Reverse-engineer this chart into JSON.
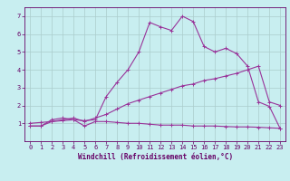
{
  "xlabel": "Windchill (Refroidissement éolien,°C)",
  "background_color": "#c8eef0",
  "line_color": "#993399",
  "grid_color": "#aacccc",
  "xlim": [
    -0.5,
    23.5
  ],
  "ylim": [
    0,
    7.5
  ],
  "xticks": [
    0,
    1,
    2,
    3,
    4,
    5,
    6,
    7,
    8,
    9,
    10,
    11,
    12,
    13,
    14,
    15,
    16,
    17,
    18,
    19,
    20,
    21,
    22,
    23
  ],
  "yticks": [
    1,
    2,
    3,
    4,
    5,
    6,
    7
  ],
  "line1_x": [
    0,
    1,
    2,
    3,
    4,
    5,
    6,
    7,
    8,
    9,
    10,
    11,
    12,
    13,
    14,
    15,
    16,
    17,
    18,
    19,
    20,
    21,
    22,
    23
  ],
  "line1_y": [
    0.85,
    0.85,
    1.1,
    1.15,
    1.2,
    0.85,
    1.1,
    1.1,
    1.05,
    1.0,
    1.0,
    0.95,
    0.9,
    0.9,
    0.9,
    0.85,
    0.85,
    0.85,
    0.82,
    0.8,
    0.8,
    0.78,
    0.75,
    0.72
  ],
  "line2_x": [
    0,
    1,
    2,
    3,
    4,
    5,
    6,
    7,
    8,
    9,
    10,
    11,
    12,
    13,
    14,
    15,
    16,
    17,
    18,
    19,
    20,
    21,
    22,
    23
  ],
  "line2_y": [
    1.0,
    1.05,
    1.1,
    1.2,
    1.3,
    1.1,
    1.3,
    1.5,
    1.8,
    2.1,
    2.3,
    2.5,
    2.7,
    2.9,
    3.1,
    3.2,
    3.4,
    3.5,
    3.65,
    3.8,
    4.0,
    4.2,
    2.2,
    2.0
  ],
  "line3_x": [
    0,
    1,
    2,
    3,
    4,
    5,
    6,
    7,
    8,
    9,
    10,
    11,
    12,
    13,
    14,
    15,
    16,
    17,
    18,
    19,
    20,
    21,
    22,
    23
  ],
  "line3_y": [
    0.85,
    0.85,
    1.2,
    1.3,
    1.2,
    1.15,
    1.2,
    2.5,
    3.3,
    4.0,
    5.0,
    6.65,
    6.4,
    6.2,
    7.0,
    6.7,
    5.3,
    5.0,
    5.2,
    4.9,
    4.2,
    2.2,
    1.95,
    0.7
  ],
  "tick_label_color": "#660066",
  "spine_color": "#660066",
  "xlabel_fontsize": 5.5,
  "tick_fontsize": 5,
  "linewidth": 0.8,
  "markersize": 3
}
